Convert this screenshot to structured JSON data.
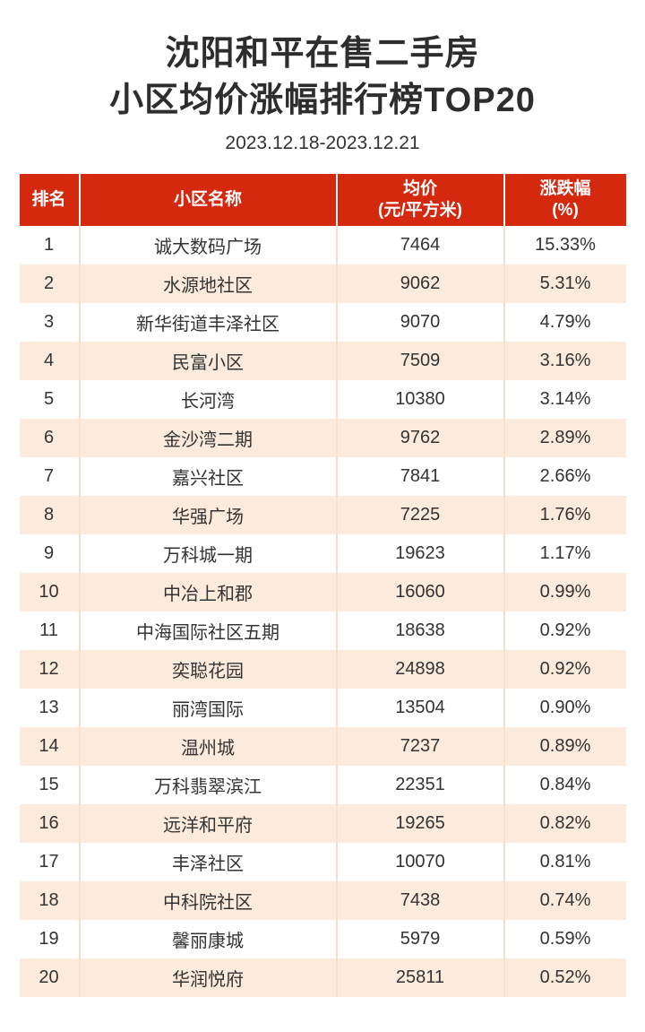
{
  "title": {
    "line1": "沈阳和平在售二手房",
    "line2": "小区均价涨幅排行榜TOP20",
    "subtitle": "2023.12.18-2023.12.21"
  },
  "colors": {
    "header_red": "#d4290f",
    "row_peach": "#fcebdc",
    "text_dark": "#333333"
  },
  "table": {
    "headers": {
      "rank": "排名",
      "name": "小区名称",
      "price_line1": "均价",
      "price_line2": "(元/平方米)",
      "change_line1": "涨跌幅",
      "change_line2": "(%)"
    },
    "rows": [
      {
        "rank": "1",
        "name": "诚大数码广场",
        "price": "7464",
        "change": "15.33%"
      },
      {
        "rank": "2",
        "name": "水源地社区",
        "price": "9062",
        "change": "5.31%"
      },
      {
        "rank": "3",
        "name": "新华街道丰泽社区",
        "price": "9070",
        "change": "4.79%"
      },
      {
        "rank": "4",
        "name": "民富小区",
        "price": "7509",
        "change": "3.16%"
      },
      {
        "rank": "5",
        "name": "长河湾",
        "price": "10380",
        "change": "3.14%"
      },
      {
        "rank": "6",
        "name": "金沙湾二期",
        "price": "9762",
        "change": "2.89%"
      },
      {
        "rank": "7",
        "name": "嘉兴社区",
        "price": "7841",
        "change": "2.66%"
      },
      {
        "rank": "8",
        "name": "华强广场",
        "price": "7225",
        "change": "1.76%"
      },
      {
        "rank": "9",
        "name": "万科城一期",
        "price": "19623",
        "change": "1.17%"
      },
      {
        "rank": "10",
        "name": "中冶上和郡",
        "price": "16060",
        "change": "0.99%"
      },
      {
        "rank": "11",
        "name": "中海国际社区五期",
        "price": "18638",
        "change": "0.92%"
      },
      {
        "rank": "12",
        "name": "奕聪花园",
        "price": "24898",
        "change": "0.92%"
      },
      {
        "rank": "13",
        "name": "丽湾国际",
        "price": "13504",
        "change": "0.90%"
      },
      {
        "rank": "14",
        "name": "温州城",
        "price": "7237",
        "change": "0.89%"
      },
      {
        "rank": "15",
        "name": "万科翡翠滨江",
        "price": "22351",
        "change": "0.84%"
      },
      {
        "rank": "16",
        "name": "远洋和平府",
        "price": "19265",
        "change": "0.82%"
      },
      {
        "rank": "17",
        "name": "丰泽社区",
        "price": "10070",
        "change": "0.81%"
      },
      {
        "rank": "18",
        "name": "中科院社区",
        "price": "7438",
        "change": "0.74%"
      },
      {
        "rank": "19",
        "name": "馨丽康城",
        "price": "5979",
        "change": "0.59%"
      },
      {
        "rank": "20",
        "name": "华润悦府",
        "price": "25811",
        "change": "0.52%"
      }
    ]
  },
  "chart_data": {
    "type": "table",
    "title": "沈阳和平在售二手房 小区均价涨幅排行榜TOP20",
    "date_range": "2023.12.18-2023.12.21",
    "columns": [
      "排名",
      "小区名称",
      "均价(元/平方米)",
      "涨跌幅(%)"
    ],
    "rows": [
      [
        1,
        "诚大数码广场",
        7464,
        15.33
      ],
      [
        2,
        "水源地社区",
        9062,
        5.31
      ],
      [
        3,
        "新华街道丰泽社区",
        9070,
        4.79
      ],
      [
        4,
        "民富小区",
        7509,
        3.16
      ],
      [
        5,
        "长河湾",
        10380,
        3.14
      ],
      [
        6,
        "金沙湾二期",
        9762,
        2.89
      ],
      [
        7,
        "嘉兴社区",
        7841,
        2.66
      ],
      [
        8,
        "华强广场",
        7225,
        1.76
      ],
      [
        9,
        "万科城一期",
        19623,
        1.17
      ],
      [
        10,
        "中冶上和郡",
        16060,
        0.99
      ],
      [
        11,
        "中海国际社区五期",
        18638,
        0.92
      ],
      [
        12,
        "奕聪花园",
        24898,
        0.92
      ],
      [
        13,
        "丽湾国际",
        13504,
        0.9
      ],
      [
        14,
        "温州城",
        7237,
        0.89
      ],
      [
        15,
        "万科翡翠滨江",
        22351,
        0.84
      ],
      [
        16,
        "远洋和平府",
        19265,
        0.82
      ],
      [
        17,
        "丰泽社区",
        10070,
        0.81
      ],
      [
        18,
        "中科院社区",
        7438,
        0.74
      ],
      [
        19,
        "馨丽康城",
        5979,
        0.59
      ],
      [
        20,
        "华润悦府",
        25811,
        0.52
      ]
    ]
  }
}
